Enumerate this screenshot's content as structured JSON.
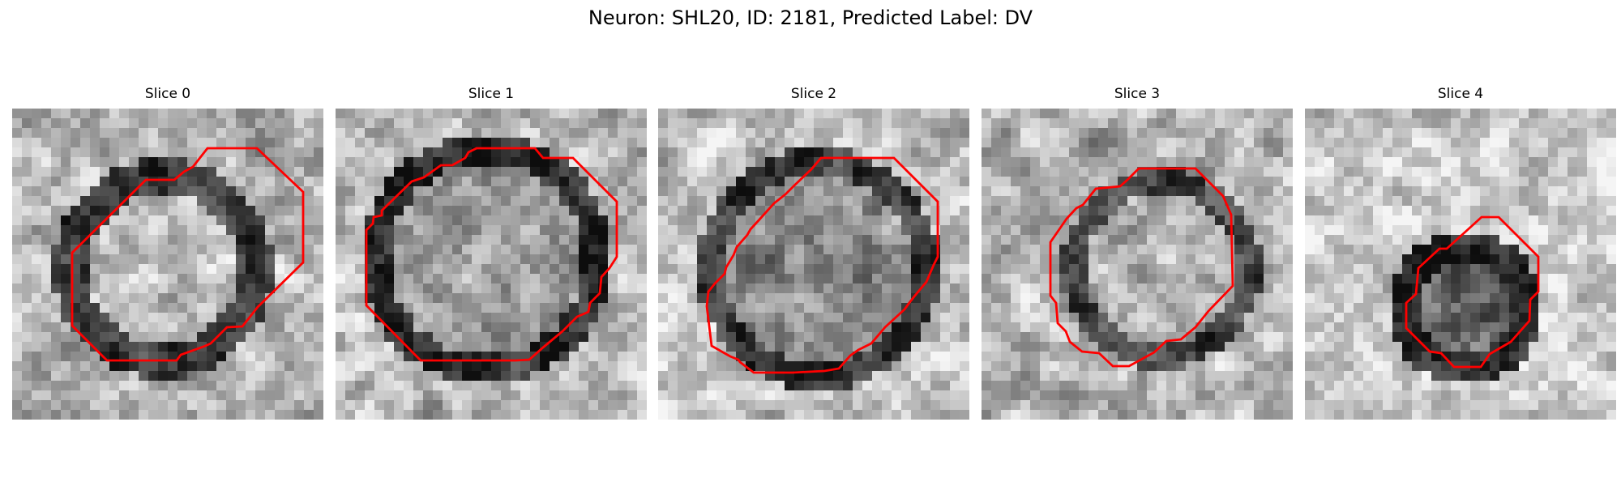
{
  "figure": {
    "title": "Neuron: SHL20, ID: 2181, Predicted Label: DV"
  },
  "panels": [
    {
      "title": "Slice 0",
      "outline_color": "#ff0000",
      "image": {
        "cell_size": 32,
        "seed": 11,
        "cx": 15,
        "cy": 16,
        "ring_r": 9.5,
        "ring_w": 3.5,
        "center_bright": 0.72,
        "background": 0.7,
        "ring_dark": 0.22
      }
    },
    {
      "title": "Slice 1",
      "outline_color": "#ff0000",
      "image": {
        "cell_size": 32,
        "seed": 23,
        "cx": 15,
        "cy": 15,
        "ring_r": 11.5,
        "ring_w": 3.0,
        "center_bright": 0.62,
        "background": 0.72,
        "ring_dark": 0.18
      }
    },
    {
      "title": "Slice 2",
      "outline_color": "#ff0000",
      "image": {
        "cell_size": 32,
        "seed": 37,
        "cx": 16,
        "cy": 16,
        "ring_r": 11.0,
        "ring_w": 3.0,
        "center_bright": 0.55,
        "background": 0.75,
        "ring_dark": 0.2
      }
    },
    {
      "title": "Slice 3",
      "outline_color": "#ff0000",
      "image": {
        "cell_size": 32,
        "seed": 41,
        "cx": 18,
        "cy": 16,
        "ring_r": 9.0,
        "ring_w": 2.5,
        "center_bright": 0.68,
        "background": 0.7,
        "ring_dark": 0.3
      }
    },
    {
      "title": "Slice 4",
      "outline_color": "#ff0000",
      "image": {
        "cell_size": 32,
        "seed": 53,
        "cx": 16,
        "cy": 20,
        "ring_r": 6.5,
        "ring_w": 3.0,
        "center_bright": 0.42,
        "background": 0.8,
        "ring_dark": 0.15
      }
    }
  ]
}
